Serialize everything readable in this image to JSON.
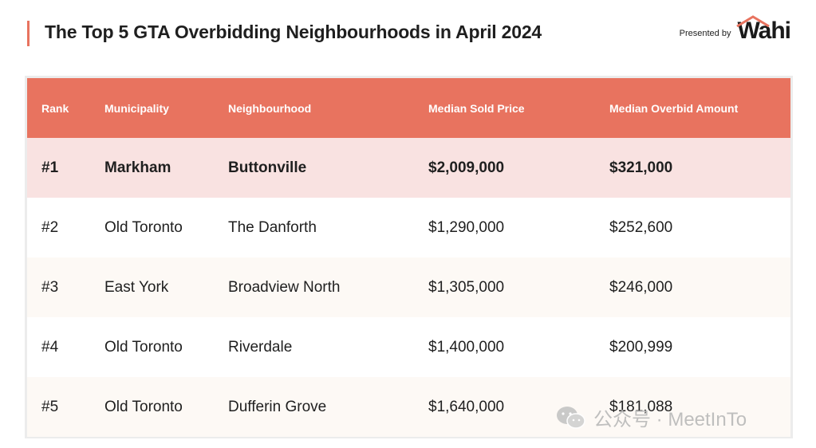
{
  "header": {
    "title": "The Top 5 GTA Overbidding Neighbourhoods in April 2024",
    "presented_by": "Presented by",
    "logo_text": "Wahi",
    "accent_color": "#e8735f"
  },
  "table": {
    "columns": [
      "Rank",
      "Municipality",
      "Neighbourhood",
      "Median Sold Price",
      "Median Overbid Amount"
    ],
    "rows": [
      [
        "#1",
        "Markham",
        "Buttonville",
        "$2,009,000",
        "$321,000"
      ],
      [
        "#2",
        "Old Toronto",
        "The Danforth",
        "$1,290,000",
        "$252,600"
      ],
      [
        "#3",
        "East York",
        "Broadview North",
        "$1,305,000",
        "$246,000"
      ],
      [
        "#4",
        "Old Toronto",
        "Riverdale",
        "$1,400,000",
        "$200,999"
      ],
      [
        "#5",
        "Old Toronto",
        "Dufferin Grove",
        "$1,640,000",
        "$181,088"
      ]
    ]
  },
  "watermark": {
    "icon": "wechat-icon",
    "text": "公众号 · MeetInTo"
  }
}
